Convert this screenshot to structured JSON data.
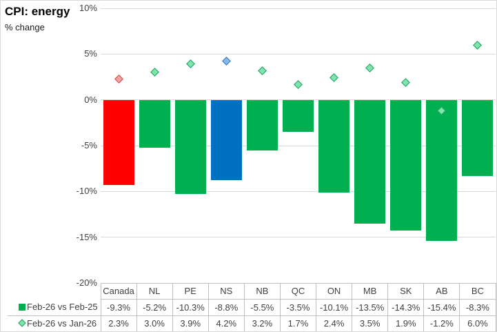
{
  "title": "CPI: energy",
  "subtitle": "% change",
  "chart_data": {
    "type": "bar",
    "title": "CPI: energy",
    "subtitle": "% change",
    "categories": [
      "Canada",
      "NL",
      "PE",
      "NS",
      "NB",
      "QC",
      "ON",
      "MB",
      "SK",
      "AB",
      "BC"
    ],
    "series": [
      {
        "name": "Feb-26 vs Feb-25",
        "type": "bar",
        "values": [
          -9.3,
          -5.2,
          -10.3,
          -8.8,
          -5.5,
          -3.5,
          -10.1,
          -13.5,
          -14.3,
          -15.4,
          -8.3
        ]
      },
      {
        "name": "Feb-26 vs Jan-26",
        "type": "scatter",
        "marker": "diamond",
        "values": [
          2.3,
          3.0,
          3.9,
          4.2,
          3.2,
          1.7,
          2.4,
          3.5,
          1.9,
          -1.2,
          6.0
        ]
      }
    ],
    "ylim": [
      -20,
      10
    ],
    "yticks": [
      10,
      5,
      0,
      -5,
      -10,
      -15,
      -20
    ],
    "ytick_labels": [
      "10%",
      "5%",
      "0%",
      "-5%",
      "-10%",
      "-15%",
      "-20%"
    ],
    "grid": true,
    "legend_position": "data-table-left"
  },
  "table": {
    "header": [
      "Canada",
      "NL",
      "PE",
      "NS",
      "NB",
      "QC",
      "ON",
      "MB",
      "SK",
      "AB",
      "BC"
    ],
    "rows": [
      {
        "label": "Feb-26 vs Feb-25",
        "values": [
          "-9.3%",
          "-5.2%",
          "-10.3%",
          "-8.8%",
          "-5.5%",
          "-3.5%",
          "-10.1%",
          "-13.5%",
          "-14.3%",
          "-15.4%",
          "-8.3%"
        ]
      },
      {
        "label": "Feb-26 vs Jan-26",
        "values": [
          "2.3%",
          "3.0%",
          "3.9%",
          "4.2%",
          "3.2%",
          "1.7%",
          "2.4%",
          "3.5%",
          "1.9%",
          "-1.2%",
          "6.0%"
        ]
      }
    ]
  },
  "colors": {
    "bar_default": "#00AF50",
    "bar_overrides": {
      "Canada": "#FF0000",
      "NS": "#0070C0"
    },
    "marker_default_fill": "#7FE5AC",
    "marker_default_border": "#19A05F",
    "marker_overrides": {
      "Canada": {
        "fill": "#F4A2A2",
        "border": "#E03C3C"
      },
      "NS": {
        "fill": "#85B9E9",
        "border": "#2E75B6"
      }
    },
    "gridline": "#D9D9D9",
    "table_border": "#C0C0C0",
    "axis_text": "#404040"
  }
}
